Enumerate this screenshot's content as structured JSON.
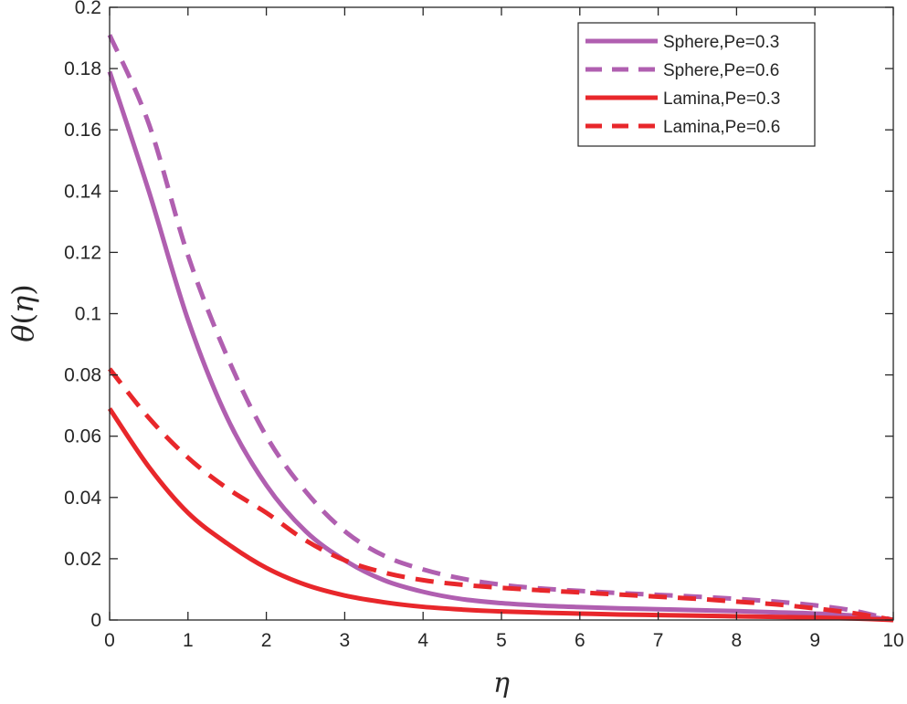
{
  "chart_data": {
    "type": "line",
    "title": "",
    "xlabel": "η",
    "ylabel": {
      "symbol": "θ",
      "open": "(",
      "var": "η",
      "close": ")"
    },
    "xlim": [
      0,
      10
    ],
    "ylim": [
      0,
      0.2
    ],
    "xticks": [
      0,
      1,
      2,
      3,
      4,
      5,
      6,
      7,
      8,
      9,
      10
    ],
    "xtick_labels": [
      "0",
      "1",
      "2",
      "3",
      "4",
      "5",
      "6",
      "7",
      "8",
      "9",
      "10"
    ],
    "yticks": [
      0,
      0.02,
      0.04,
      0.06,
      0.08,
      0.1,
      0.12,
      0.14,
      0.16,
      0.18,
      0.2
    ],
    "ytick_labels": [
      "0",
      "0.02",
      "0.04",
      "0.06",
      "0.08",
      "0.1",
      "0.12",
      "0.14",
      "0.16",
      "0.18",
      "0.2"
    ],
    "grid": false,
    "legend_position": "top-right",
    "x": [
      0,
      0.5,
      1,
      1.5,
      2,
      2.5,
      3,
      3.5,
      4,
      4.5,
      5,
      5.5,
      6,
      6.5,
      7,
      7.5,
      8,
      8.5,
      9,
      9.5,
      10
    ],
    "series": [
      {
        "name": "Sphere,Pe=0.3",
        "color": "#b05fb0",
        "dash": "solid",
        "values": [
          0.179,
          0.14,
          0.098,
          0.066,
          0.044,
          0.029,
          0.0195,
          0.013,
          0.0092,
          0.0068,
          0.0055,
          0.0047,
          0.0042,
          0.0038,
          0.0035,
          0.0032,
          0.0029,
          0.0025,
          0.0021,
          0.0014,
          0.0
        ]
      },
      {
        "name": "Sphere,Pe=0.6",
        "color": "#b05fb0",
        "dash": "dashed",
        "values": [
          0.191,
          0.162,
          0.119,
          0.086,
          0.06,
          0.042,
          0.029,
          0.021,
          0.0165,
          0.0135,
          0.0115,
          0.0103,
          0.0095,
          0.0088,
          0.0082,
          0.0076,
          0.0069,
          0.006,
          0.0048,
          0.003,
          0.0
        ]
      },
      {
        "name": "Lamina,Pe=0.3",
        "color": "#e8272b",
        "dash": "solid",
        "values": [
          0.069,
          0.05,
          0.035,
          0.025,
          0.017,
          0.0115,
          0.008,
          0.0058,
          0.0043,
          0.0034,
          0.0028,
          0.0024,
          0.0021,
          0.0018,
          0.0016,
          0.0014,
          0.0012,
          0.001,
          0.0008,
          0.0005,
          0.0
        ]
      },
      {
        "name": "Lamina,Pe=0.6",
        "color": "#e8272b",
        "dash": "dashed",
        "values": [
          0.082,
          0.066,
          0.053,
          0.043,
          0.035,
          0.026,
          0.0195,
          0.0155,
          0.013,
          0.0115,
          0.0105,
          0.0097,
          0.009,
          0.0083,
          0.0076,
          0.0069,
          0.006,
          0.0051,
          0.0038,
          0.0022,
          0.0
        ]
      }
    ]
  }
}
